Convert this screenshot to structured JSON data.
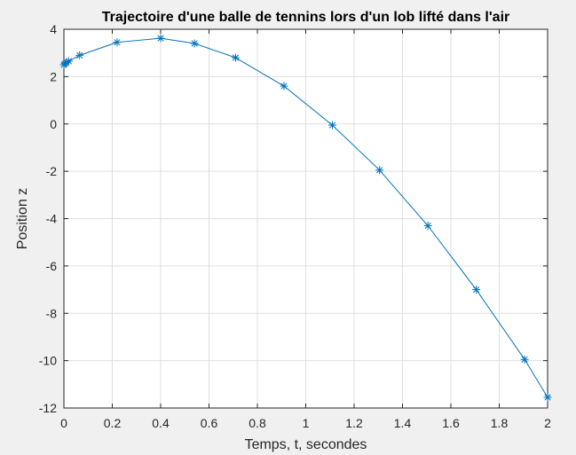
{
  "chart_data": {
    "type": "line",
    "title": "Trajectoire d'une balle de tennins lors d'un lob lifté dans l'air",
    "xlabel": "Temps, t, secondes",
    "ylabel": "Position z",
    "xlim": [
      0,
      2
    ],
    "ylim": [
      -12,
      4
    ],
    "x_ticks": [
      "0",
      "0.2",
      "0.4",
      "0.6",
      "0.8",
      "1",
      "1.2",
      "1.4",
      "1.6",
      "1.8",
      "2"
    ],
    "y_ticks": [
      "4",
      "2",
      "0",
      "-2",
      "-4",
      "-6",
      "-8",
      "-10",
      "-12"
    ],
    "grid": true,
    "marker": "asterisk",
    "line_color": "#0072bd",
    "series": [
      {
        "x": [
          0,
          0.005,
          0.01,
          0.02,
          0.065,
          0.22,
          0.4,
          0.54,
          0.71,
          0.91,
          1.11,
          1.305,
          1.505,
          1.705,
          1.905,
          2.0
        ],
        "y": [
          2.5,
          2.55,
          2.6,
          2.65,
          2.9,
          3.45,
          3.62,
          3.4,
          2.8,
          1.6,
          -0.05,
          -1.95,
          -4.3,
          -7.0,
          -9.95,
          -11.55
        ]
      }
    ]
  }
}
